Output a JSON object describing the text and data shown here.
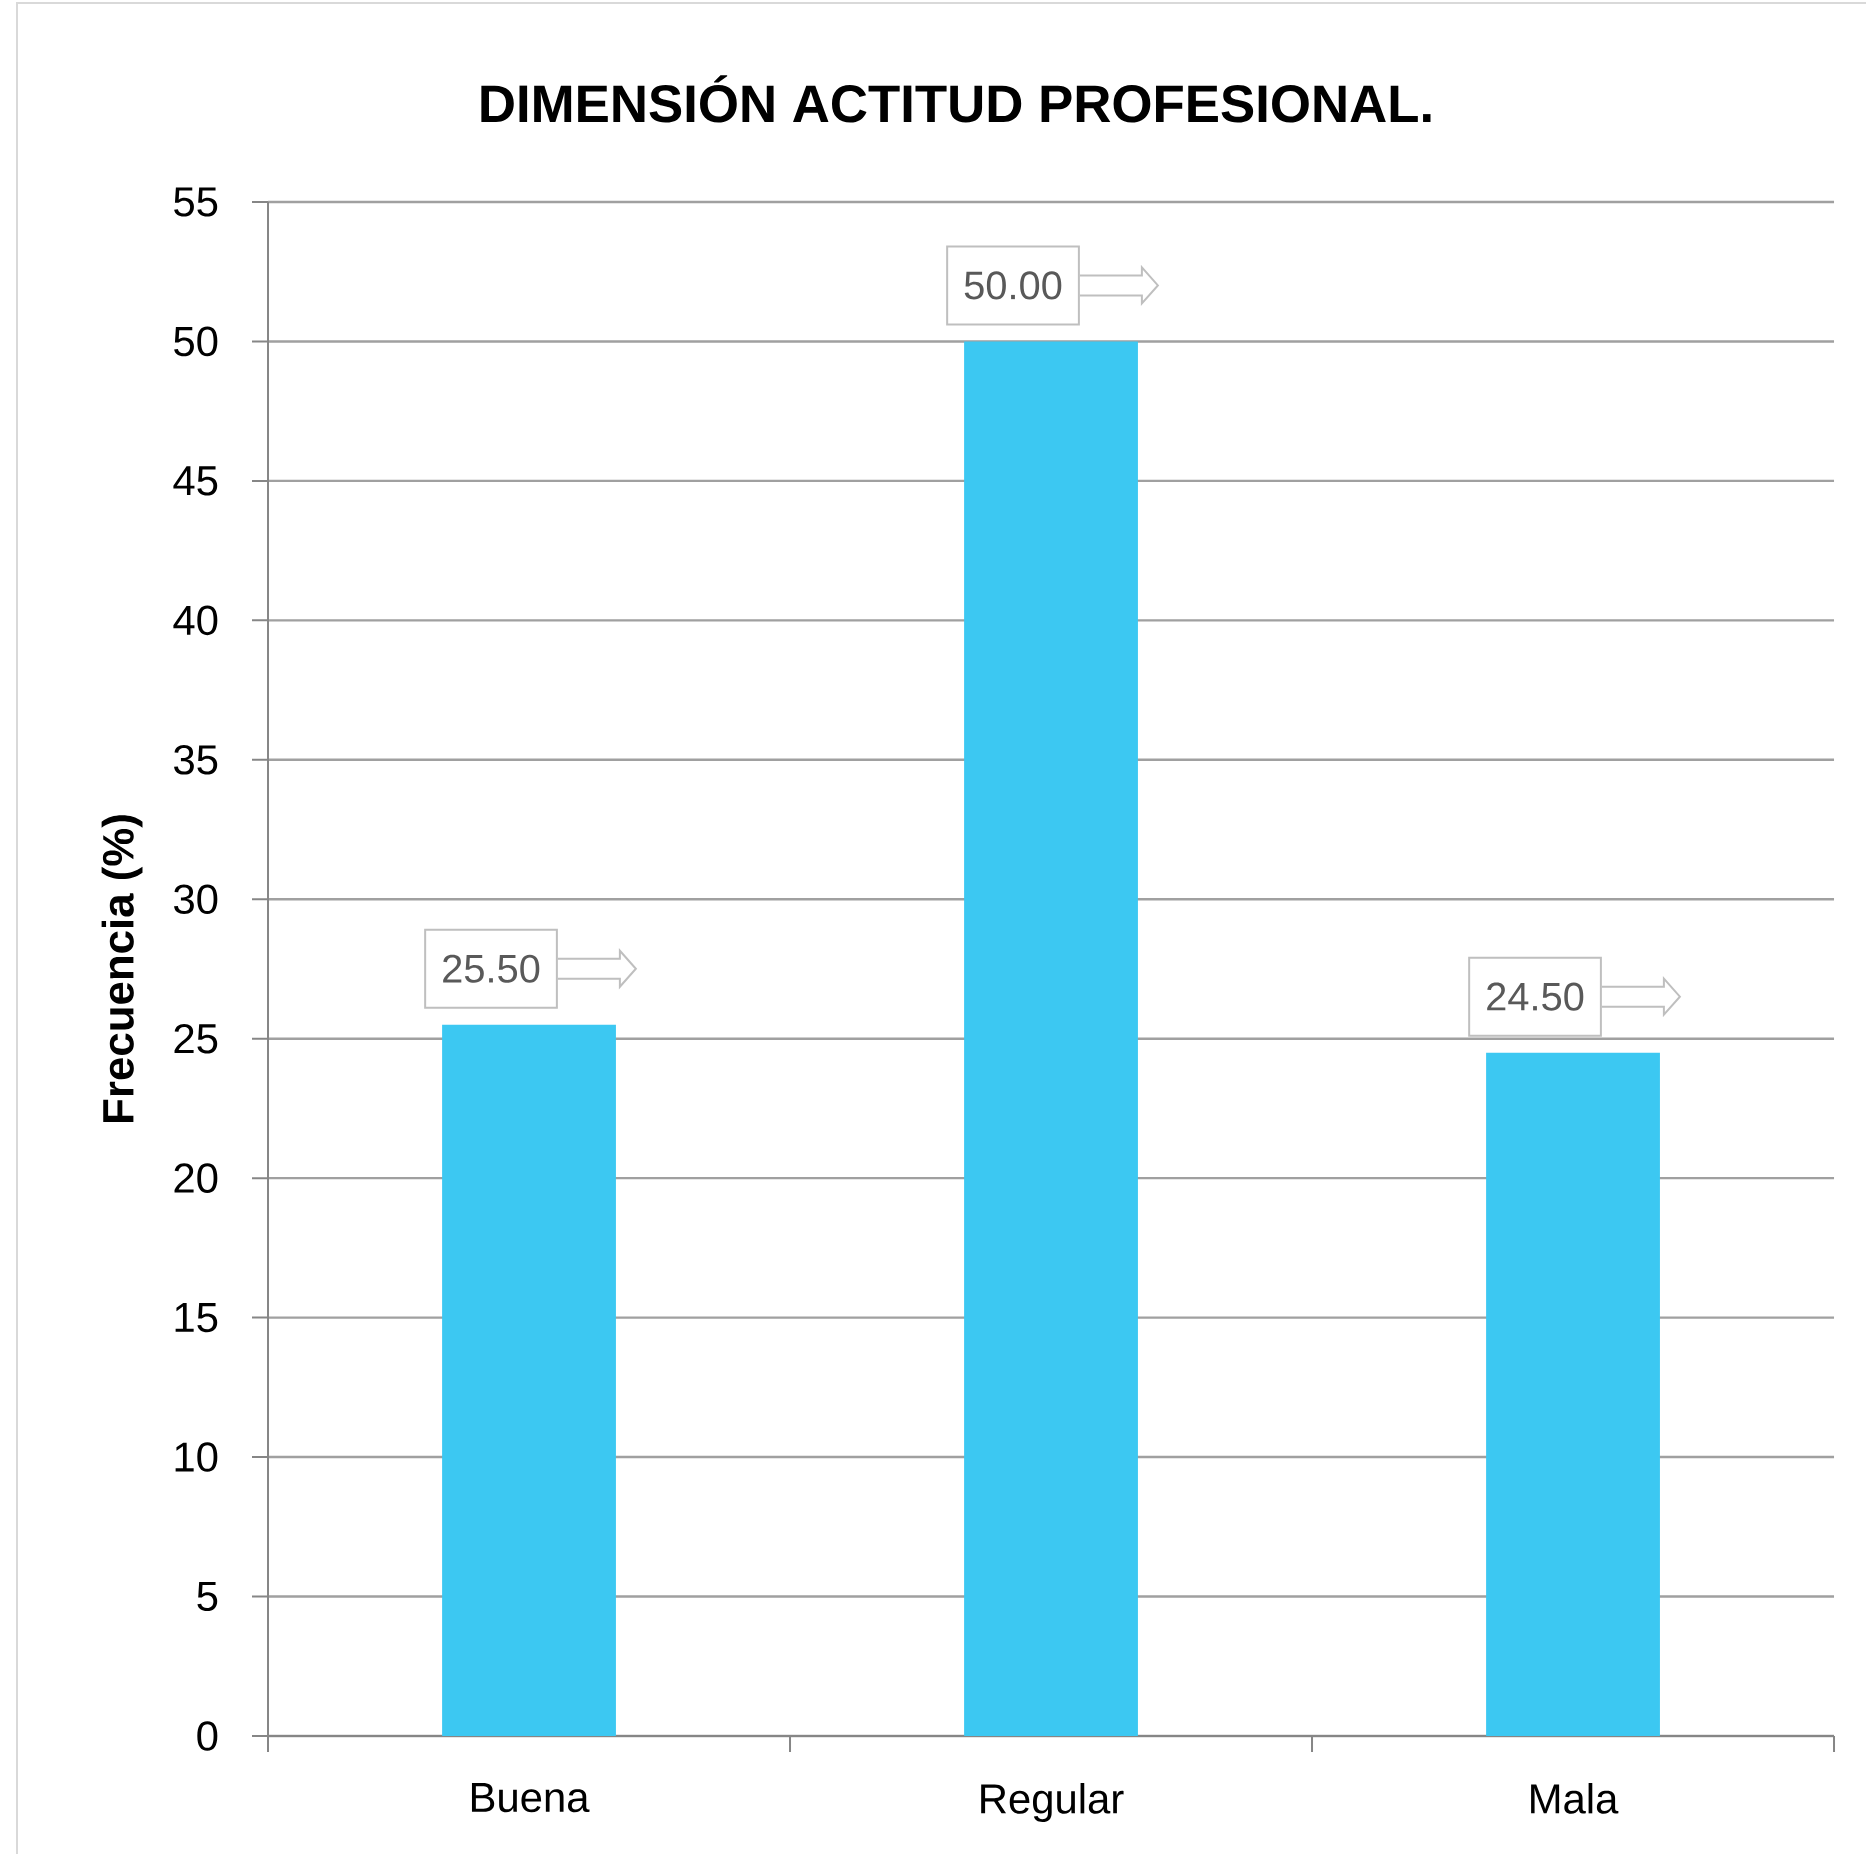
{
  "chart_data": {
    "type": "bar",
    "title": "DIMENSIÓN ACTITUD PROFESIONAL.",
    "ylabel": "Frecuencia (%)",
    "categories": [
      "Buena",
      "Regular",
      "Mala"
    ],
    "values": [
      25.5,
      50,
      24.5
    ],
    "color": "#3cc8f2",
    "value_labels": [
      "25.50",
      "50.00",
      "24.50"
    ],
    "ylim": [
      0,
      55
    ],
    "yticks": [
      0,
      5,
      10,
      15,
      20,
      25,
      30,
      35,
      40,
      45,
      50,
      55
    ],
    "grid": "y"
  }
}
